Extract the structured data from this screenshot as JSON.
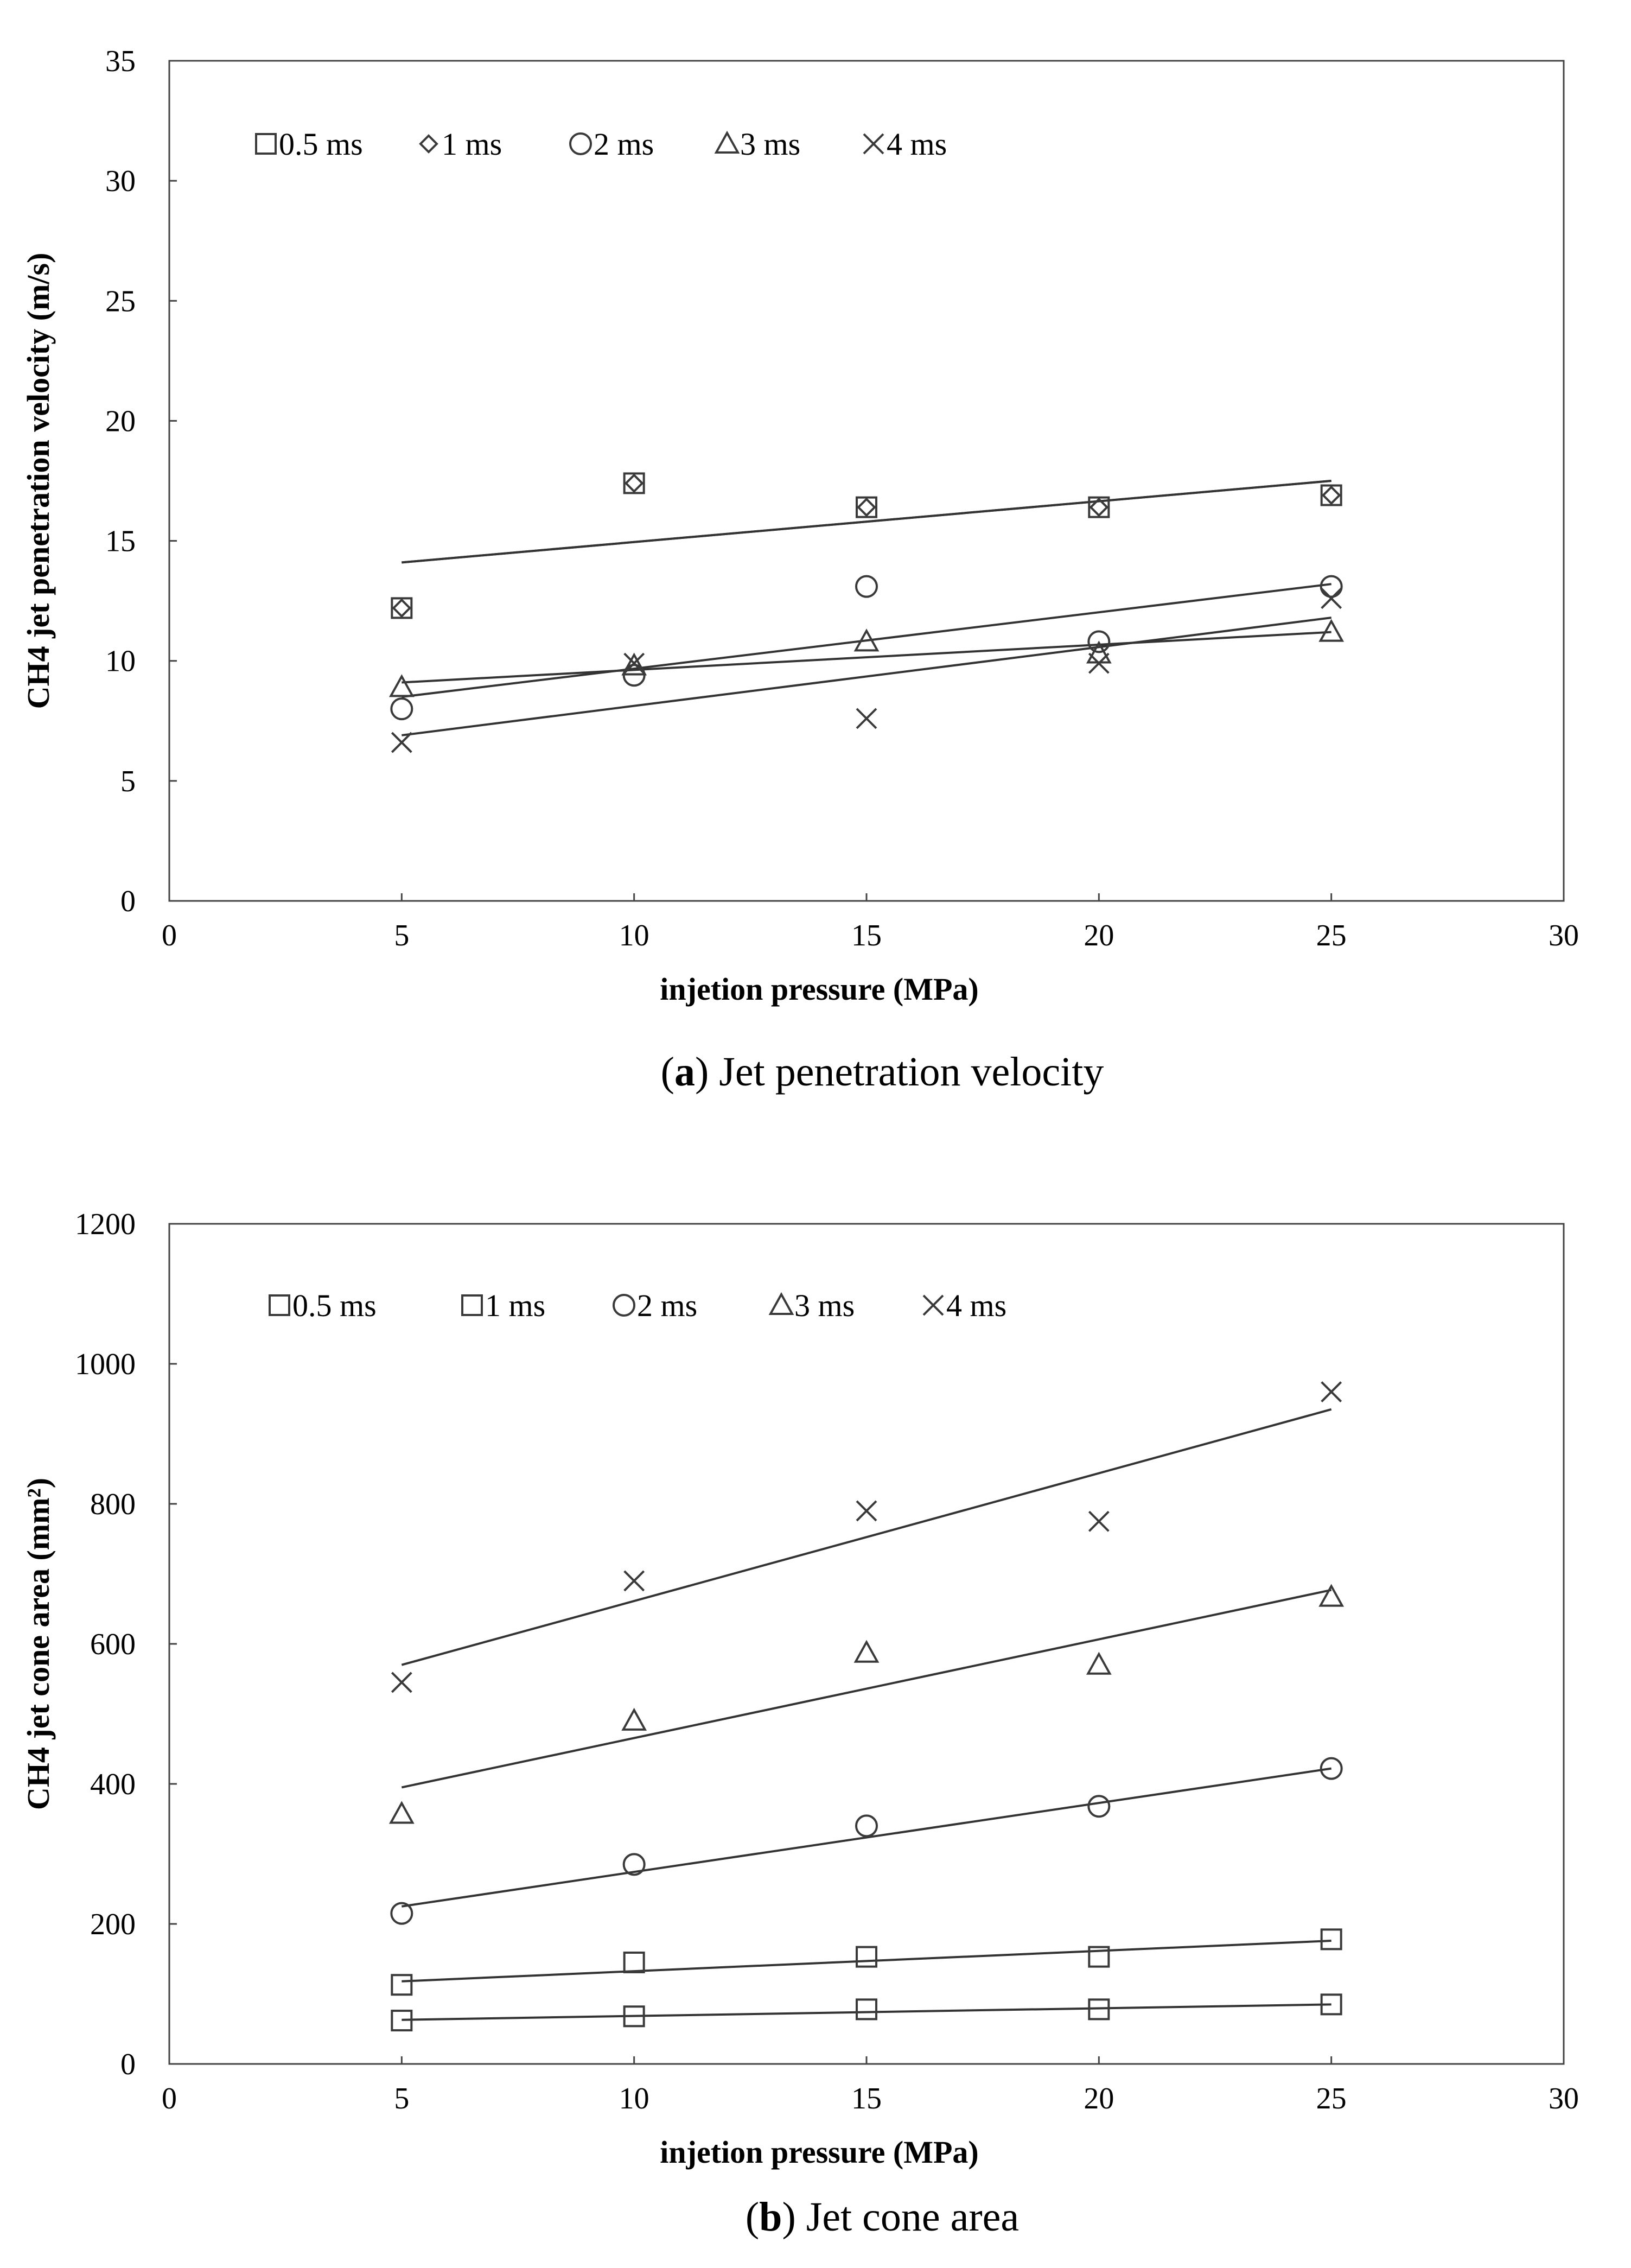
{
  "chart_data": [
    {
      "type": "scatter",
      "panel": "a",
      "caption_letter": "a",
      "caption_text": " Jet penetration velocity",
      "xlabel": "injetion pressure (MPa)",
      "ylabel": "CH4 jet penetration velocity (m/s)",
      "xlim": [
        0,
        30
      ],
      "ylim": [
        0,
        35
      ],
      "xticks": [
        0,
        5,
        10,
        15,
        20,
        25,
        30
      ],
      "yticks": [
        0,
        5,
        10,
        15,
        20,
        25,
        30,
        35
      ],
      "x": [
        5,
        10,
        15,
        20,
        25
      ],
      "series": [
        {
          "name": "0.5 ms",
          "marker": "square",
          "values": [
            12.2,
            17.4,
            16.4,
            16.4,
            16.9
          ],
          "trend": [
            14.1,
            17.5
          ]
        },
        {
          "name": "1 ms",
          "marker": "diamond",
          "values": [
            12.2,
            17.4,
            16.4,
            16.4,
            16.9
          ],
          "trend": [
            14.1,
            17.5
          ]
        },
        {
          "name": "2 ms",
          "marker": "circle",
          "values": [
            8.0,
            9.4,
            13.1,
            10.8,
            13.1
          ],
          "trend": [
            8.5,
            13.2
          ]
        },
        {
          "name": "3 ms",
          "marker": "triangle",
          "values": [
            8.9,
            9.8,
            10.8,
            10.3,
            11.2
          ],
          "trend": [
            9.1,
            11.2
          ]
        },
        {
          "name": "4 ms",
          "marker": "cross",
          "values": [
            6.6,
            9.9,
            7.6,
            9.9,
            12.6
          ],
          "trend": [
            6.9,
            11.8
          ]
        }
      ]
    },
    {
      "type": "scatter",
      "panel": "b",
      "caption_letter": "b",
      "caption_text": " Jet cone area",
      "xlabel": "injetion pressure (MPa)",
      "ylabel": "CH4 jet cone area (mm²)",
      "xlim": [
        0,
        30
      ],
      "ylim": [
        0,
        1200
      ],
      "xticks": [
        0,
        5,
        10,
        15,
        20,
        25,
        30
      ],
      "yticks": [
        0,
        200,
        400,
        600,
        800,
        1000,
        1200
      ],
      "x": [
        5,
        10,
        15,
        20,
        25
      ],
      "series": [
        {
          "name": "0.5 ms",
          "marker": "square",
          "values": [
            62,
            68,
            78,
            78,
            85
          ],
          "trend": [
            63,
            85
          ]
        },
        {
          "name": "1 ms",
          "marker": "square",
          "values": [
            113,
            145,
            153,
            153,
            178
          ],
          "trend": [
            118,
            176
          ]
        },
        {
          "name": "2 ms",
          "marker": "circle",
          "values": [
            215,
            285,
            340,
            368,
            422
          ],
          "trend": [
            225,
            422
          ]
        },
        {
          "name": "3 ms",
          "marker": "triangle",
          "values": [
            357,
            490,
            587,
            570,
            667
          ],
          "trend": [
            395,
            677
          ]
        },
        {
          "name": "4 ms",
          "marker": "cross",
          "values": [
            545,
            690,
            790,
            775,
            960
          ],
          "trend": [
            570,
            935
          ]
        }
      ]
    }
  ]
}
